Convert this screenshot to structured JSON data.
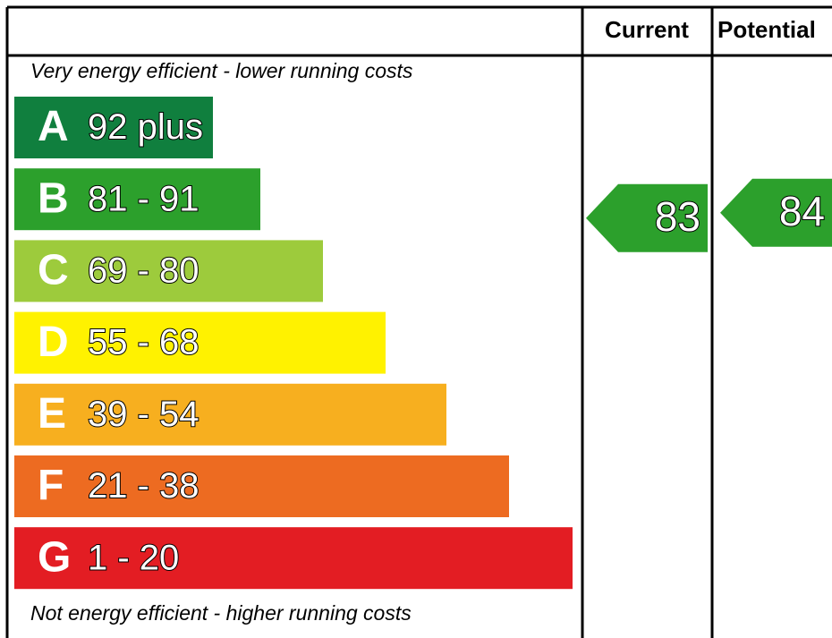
{
  "chart_data": {
    "type": "epc",
    "headers": [
      "Current",
      "Potential"
    ],
    "top_label": "Very energy efficient - lower running costs",
    "bottom_label": "Not energy efficient - higher running costs",
    "categories": [
      "A",
      "B",
      "C",
      "D",
      "E",
      "F",
      "G"
    ],
    "ranges": [
      "92 plus",
      "81 - 91",
      "69 - 80",
      "55 - 68",
      "39 - 54",
      "21 - 38",
      "1 - 20"
    ],
    "colors": [
      "#107f3e",
      "#2ca02c",
      "#9dcb3c",
      "#fff200",
      "#f7af1f",
      "#ed6b21",
      "#e31d23"
    ],
    "current": 83,
    "potential": 84,
    "arrow_color": "#2ca02c"
  }
}
